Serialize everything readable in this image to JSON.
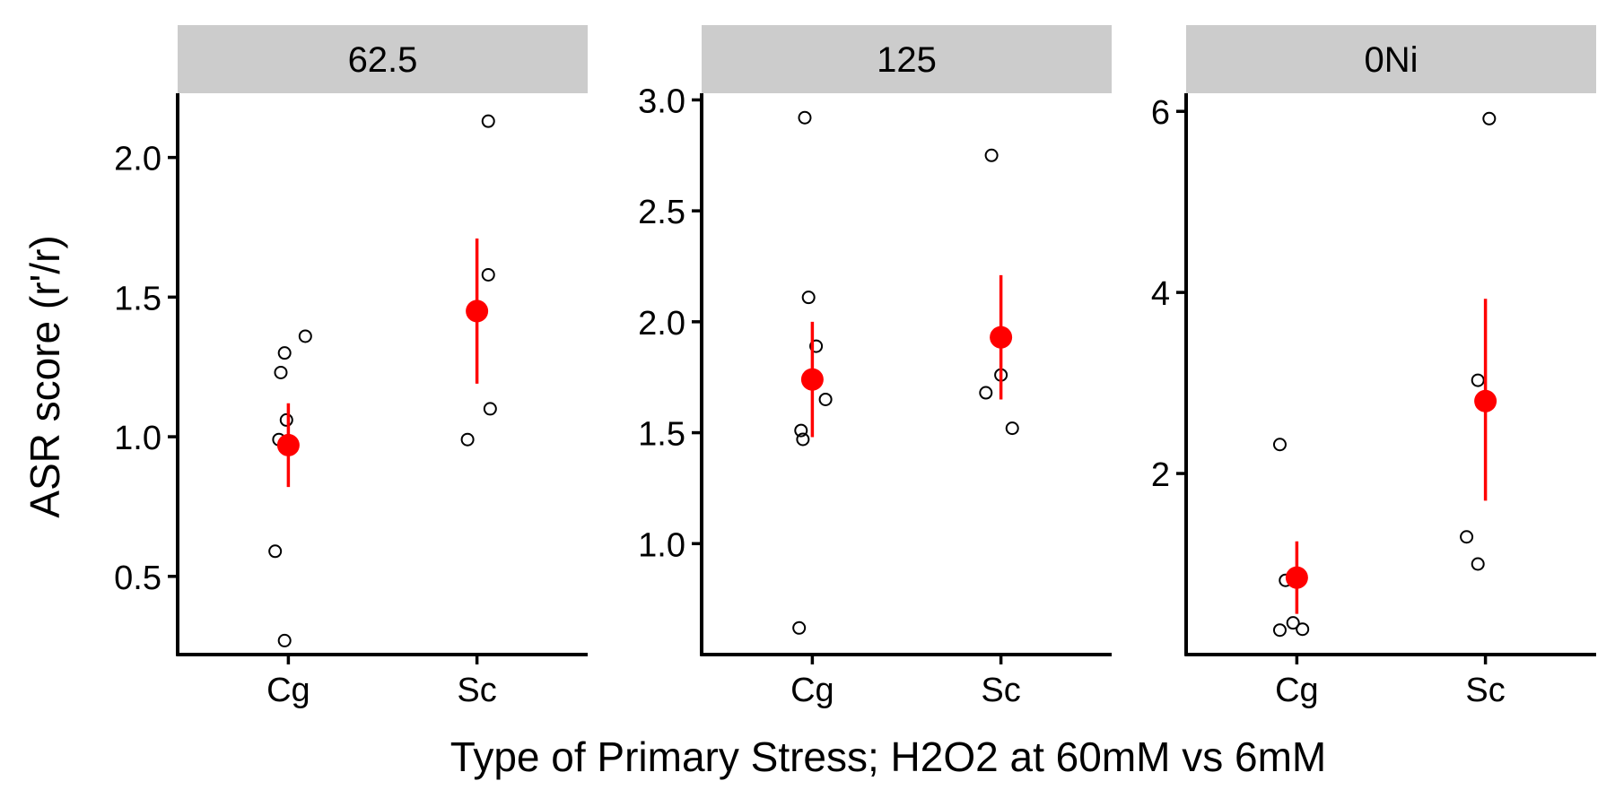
{
  "chart_data": {
    "type": "scatter",
    "ylabel": "ASR score (r'/r)",
    "xlabel": "Type of Primary Stress; H2O2 at 60mM vs 6mM",
    "categories": [
      "Cg",
      "Sc"
    ],
    "colors": {
      "summary": "#ff0000",
      "points": "#000000",
      "strip": "#cccccc"
    },
    "facets": [
      {
        "label": "62.5",
        "ylim": [
          0.22,
          2.23
        ],
        "yticks": [
          0.5,
          1.0,
          1.5,
          2.0
        ],
        "tick_labels": [
          "0.5",
          "1.0",
          "1.5",
          "2.0"
        ],
        "groups": [
          {
            "category": "Cg",
            "points": [
              [
                -0.07,
                0.59
              ],
              [
                -0.02,
                0.27
              ],
              [
                -0.04,
                1.23
              ],
              [
                -0.02,
                1.3
              ],
              [
                -0.01,
                1.06
              ],
              [
                -0.05,
                0.99
              ],
              [
                0.09,
                1.36
              ]
            ],
            "mean": 0.97,
            "lower": 0.82,
            "upper": 1.12
          },
          {
            "category": "Sc",
            "points": [
              [
                -0.05,
                0.99
              ],
              [
                0.07,
                1.1
              ],
              [
                0.06,
                1.58
              ],
              [
                0.06,
                2.13
              ]
            ],
            "mean": 1.45,
            "lower": 1.19,
            "upper": 1.71
          }
        ]
      },
      {
        "label": "125",
        "ylim": [
          0.5,
          3.03
        ],
        "yticks": [
          1.0,
          1.5,
          2.0,
          2.5,
          3.0
        ],
        "tick_labels": [
          "1.0",
          "1.5",
          "2.0",
          "2.5",
          "3.0"
        ],
        "groups": [
          {
            "category": "Cg",
            "points": [
              [
                -0.07,
                0.62
              ],
              [
                -0.05,
                1.47
              ],
              [
                -0.06,
                1.51
              ],
              [
                0.07,
                1.65
              ],
              [
                0.02,
                1.89
              ],
              [
                -0.02,
                2.11
              ],
              [
                -0.04,
                2.92
              ]
            ],
            "mean": 1.74,
            "lower": 1.48,
            "upper": 2.0
          },
          {
            "category": "Sc",
            "points": [
              [
                -0.08,
                1.68
              ],
              [
                0.0,
                1.76
              ],
              [
                0.06,
                1.52
              ],
              [
                -0.05,
                2.75
              ]
            ],
            "mean": 1.93,
            "lower": 1.65,
            "upper": 2.21
          }
        ]
      },
      {
        "label": "0Ni",
        "ylim": [
          0.0,
          6.2
        ],
        "yticks": [
          2,
          4,
          6
        ],
        "tick_labels": [
          "2",
          "4",
          "6"
        ],
        "groups": [
          {
            "category": "Cg",
            "points": [
              [
                -0.09,
                0.27
              ],
              [
                -0.02,
                0.35
              ],
              [
                0.03,
                0.28
              ],
              [
                -0.06,
                0.82
              ],
              [
                -0.09,
                2.32
              ]
            ],
            "mean": 0.85,
            "lower": 0.45,
            "upper": 1.25
          },
          {
            "category": "Sc",
            "points": [
              [
                -0.1,
                1.3
              ],
              [
                -0.04,
                1.0
              ],
              [
                -0.04,
                3.03
              ],
              [
                0.02,
                5.92
              ]
            ],
            "mean": 2.8,
            "lower": 1.7,
            "upper": 3.93
          }
        ]
      }
    ]
  }
}
